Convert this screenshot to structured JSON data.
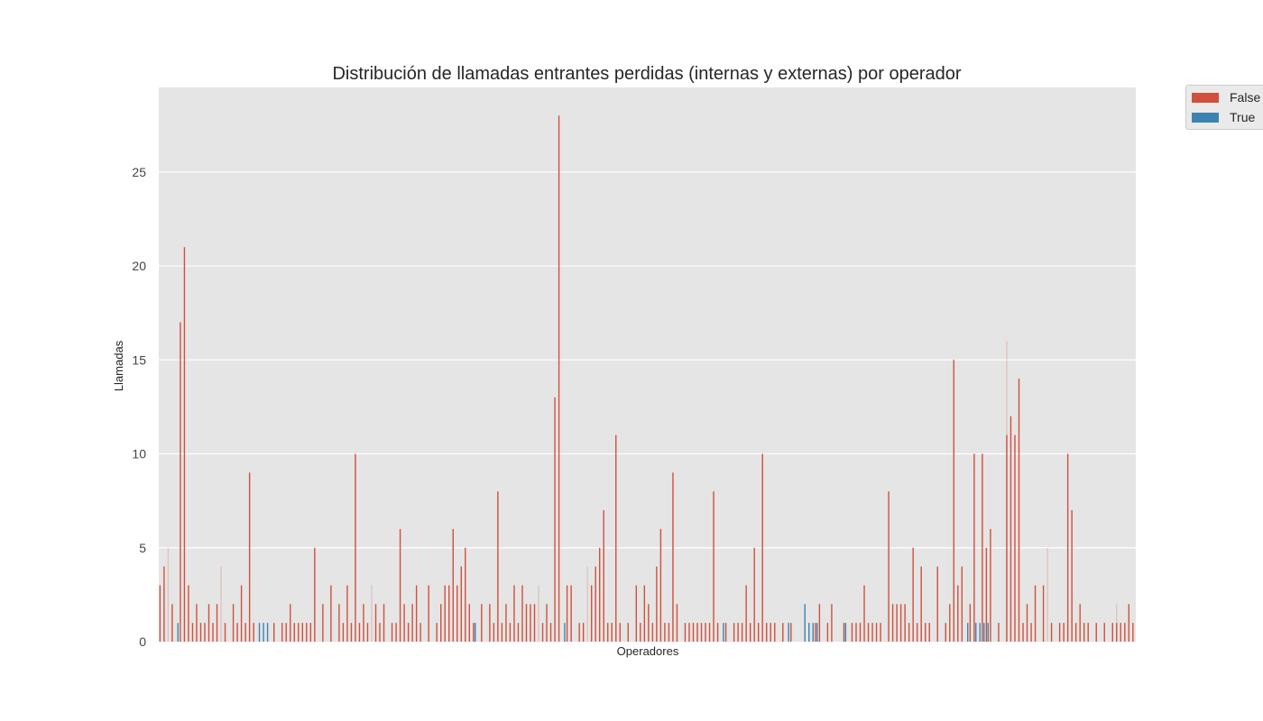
{
  "chart_data": {
    "type": "bar",
    "title": "Distribución de llamadas entrantes perdidas (internas y externas) por operador",
    "xlabel": "Operadores",
    "ylabel": "Llamadas",
    "ylim": [
      0,
      29.5
    ],
    "yticks": [
      0,
      5,
      10,
      15,
      20,
      25
    ],
    "grid": true,
    "legend_position": "outside top-right",
    "series": [
      {
        "name": "False",
        "color": "#d1503c",
        "values": [
          3,
          4,
          0,
          2,
          0,
          17,
          21,
          3,
          1,
          2,
          1,
          1,
          2,
          1,
          2,
          0,
          1,
          0,
          2,
          1,
          3,
          1,
          9,
          1,
          0,
          0,
          0,
          0,
          1,
          0,
          1,
          1,
          2,
          1,
          1,
          1,
          1,
          1,
          5,
          0,
          2,
          0,
          3,
          0,
          2,
          1,
          3,
          1,
          10,
          1,
          2,
          1,
          0,
          2,
          1,
          2,
          0,
          1,
          1,
          6,
          2,
          1,
          2,
          3,
          1,
          0,
          3,
          0,
          1,
          2,
          3,
          3,
          6,
          3,
          4,
          5,
          2,
          1,
          0,
          2,
          0,
          2,
          1,
          8,
          1,
          2,
          1,
          3,
          1,
          3,
          2,
          2,
          2,
          0,
          1,
          2,
          1,
          13,
          28,
          0,
          3,
          3,
          0,
          1,
          1,
          0,
          3,
          4,
          5,
          7,
          1,
          1,
          11,
          1,
          0,
          1,
          0,
          3,
          1,
          3,
          2,
          1,
          4,
          6,
          1,
          1,
          9,
          2,
          0,
          1,
          1,
          1,
          1,
          1,
          1,
          1,
          8,
          1,
          0,
          1,
          0,
          1,
          1,
          1,
          3,
          1,
          5,
          1,
          10,
          1,
          1,
          1,
          0,
          1,
          0,
          1,
          0,
          0,
          0,
          0,
          0,
          1,
          2,
          0,
          1,
          2,
          0,
          0,
          1,
          0,
          1,
          1,
          1,
          3,
          1,
          1,
          1,
          1,
          0,
          8,
          2,
          2,
          2,
          2,
          1,
          5,
          1,
          4,
          1,
          1,
          0,
          4,
          0,
          1,
          2,
          15,
          3,
          4,
          0,
          2,
          10,
          0,
          10,
          5,
          6,
          0,
          1,
          0,
          11,
          12,
          11,
          14,
          1,
          2,
          1,
          3,
          0,
          3,
          0,
          1,
          0,
          1,
          1,
          10,
          7,
          1,
          2,
          1,
          1,
          0,
          1,
          0,
          1,
          0,
          1,
          1,
          1,
          1,
          2,
          1
        ],
        "faint_values": [
          0,
          0,
          5,
          0,
          0,
          0,
          0,
          0,
          0,
          0,
          0,
          0,
          0,
          0,
          0,
          4,
          0,
          0,
          0,
          0,
          0,
          0,
          0,
          0,
          0,
          0,
          0,
          0,
          0,
          0,
          0,
          0,
          0,
          0,
          0,
          0,
          0,
          0,
          0,
          0,
          0,
          0,
          0,
          0,
          0,
          0,
          0,
          0,
          0,
          0,
          0,
          0,
          3,
          0,
          0,
          0,
          0,
          0,
          0,
          0,
          0,
          0,
          0,
          0,
          0,
          0,
          0,
          0,
          0,
          0,
          0,
          0,
          0,
          0,
          0,
          0,
          0,
          0,
          0,
          0,
          0,
          0,
          0,
          0,
          0,
          0,
          0,
          0,
          0,
          0,
          0,
          0,
          0,
          3,
          0,
          0,
          0,
          0,
          0,
          0,
          0,
          0,
          0,
          0,
          0,
          4,
          0,
          0,
          0,
          0,
          0,
          0,
          0,
          0,
          0,
          0,
          0,
          0,
          0,
          0,
          0,
          0,
          0,
          0,
          0,
          0,
          0,
          0,
          0,
          0,
          0,
          0,
          0,
          0,
          0,
          0,
          0,
          0,
          0,
          0,
          0,
          0,
          0,
          0,
          0,
          0,
          0,
          0,
          0,
          0,
          0,
          0,
          0,
          0,
          0,
          0,
          0,
          0,
          0,
          0,
          0,
          0,
          0,
          0,
          0,
          0,
          0,
          0,
          0,
          0,
          0,
          0,
          0,
          0,
          0,
          0,
          0,
          0,
          0,
          0,
          0,
          0,
          0,
          0,
          0,
          0,
          0,
          0,
          0,
          0,
          0,
          0,
          0,
          0,
          0,
          0,
          0,
          0,
          0,
          0,
          0,
          0,
          0,
          0,
          0,
          0,
          0,
          0,
          16,
          0,
          0,
          0,
          0,
          0,
          0,
          0,
          0,
          0,
          5,
          0,
          0,
          0,
          0,
          0,
          0,
          0,
          0,
          0,
          0,
          0,
          0,
          0,
          0,
          0,
          0,
          2,
          0,
          0,
          0,
          0,
          0
        ]
      },
      {
        "name": "True",
        "color": "#3d83b2",
        "values": [
          0,
          0,
          0,
          0,
          1,
          0,
          0,
          0,
          0,
          0,
          0,
          0,
          0,
          0,
          0,
          0,
          0,
          0,
          0,
          0,
          0,
          0,
          0,
          0,
          1,
          1,
          1,
          0,
          0,
          0,
          0,
          0,
          0,
          0,
          0,
          0,
          0,
          0,
          0,
          0,
          0,
          0,
          0,
          0,
          0,
          0,
          0,
          0,
          0,
          0,
          0,
          0,
          0,
          0,
          0,
          0,
          0,
          0,
          0,
          0,
          0,
          0,
          0,
          0,
          0,
          0,
          0,
          0,
          0,
          0,
          0,
          0,
          0,
          0,
          0,
          0,
          0,
          1,
          0,
          0,
          0,
          0,
          0,
          0,
          0,
          0,
          0,
          0,
          0,
          0,
          0,
          0,
          0,
          0,
          0,
          0,
          0,
          0,
          0,
          1,
          0,
          0,
          0,
          0,
          0,
          0,
          0,
          0,
          0,
          0,
          0,
          0,
          0,
          0,
          0,
          0,
          0,
          0,
          0,
          0,
          0,
          0,
          0,
          0,
          0,
          0,
          0,
          0,
          0,
          0,
          0,
          0,
          0,
          0,
          0,
          0,
          0,
          0,
          1,
          0,
          0,
          0,
          0,
          0,
          0,
          0,
          0,
          0,
          0,
          0,
          0,
          0,
          0,
          0,
          1,
          0,
          0,
          0,
          2,
          1,
          1,
          1,
          0,
          0,
          0,
          0,
          0,
          0,
          1,
          0,
          0,
          0,
          0,
          0,
          0,
          0,
          0,
          0,
          0,
          0,
          0,
          0,
          0,
          0,
          0,
          0,
          0,
          0,
          0,
          0,
          0,
          0,
          0,
          0,
          0,
          0,
          0,
          0,
          1,
          0,
          1,
          1,
          1,
          1,
          0,
          0,
          0,
          0,
          0,
          0,
          0,
          0,
          0,
          0,
          0,
          0,
          0,
          0,
          0,
          0,
          0,
          0,
          0,
          0,
          0,
          0,
          0,
          0,
          0,
          0,
          0,
          0,
          0,
          0,
          0,
          0,
          0,
          0,
          0,
          0,
          0
        ]
      }
    ]
  }
}
